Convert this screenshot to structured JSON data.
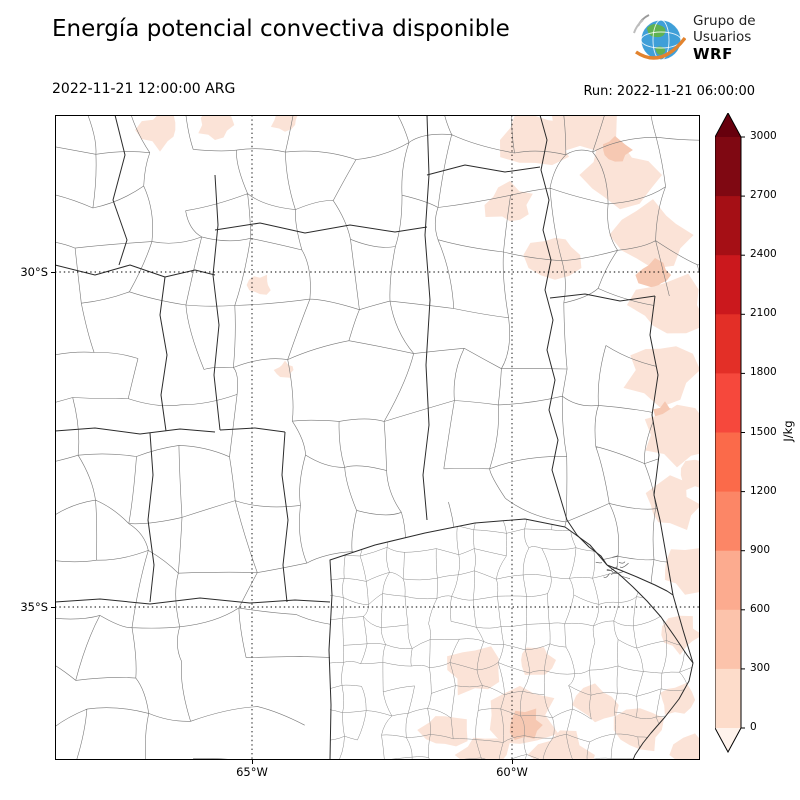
{
  "header": {
    "title": "Energía potencial convectiva disponible",
    "valid_time": "2022-11-21 12:00:00 ARG",
    "run_time": "Run: 2022-11-21 06:00:00"
  },
  "logo": {
    "org_line1": "Grupo de",
    "org_line2": "Usuarios",
    "org_line3": "WRF"
  },
  "axes": {
    "lat_ticks": [
      "30°S",
      "35°S"
    ],
    "lon_ticks": [
      "65°W",
      "60°W"
    ]
  },
  "colorbar": {
    "unit": "J/kg",
    "ticks": [
      "3000",
      "2700",
      "2400",
      "2100",
      "1800",
      "1500",
      "1200",
      "900",
      "600",
      "300",
      "0"
    ],
    "colors_top_to_bottom": [
      "#67000d",
      "#7f0812",
      "#a50f15",
      "#cb181d",
      "#e32f27",
      "#f6483c",
      "#fb6a4a",
      "#fc8666",
      "#fcab8f",
      "#fcc3ab",
      "#fddcca",
      "#fff3ec"
    ]
  },
  "chart_data": {
    "type": "heatmap",
    "title": "Energía potencial convectiva disponible",
    "variable": "CAPE (convective available potential energy)",
    "unit": "J/kg",
    "valid_time": "2022-11-21 12:00:00 ARG",
    "run": "2022-11-21 06:00:00",
    "levels": [
      0,
      300,
      600,
      900,
      1200,
      1500,
      1800,
      2100,
      2400,
      2700,
      3000
    ],
    "colormap": "Reds",
    "colorbar_extend": "both",
    "legend_position": "right",
    "lat_gridlines_deg_s": [
      30,
      35
    ],
    "lon_gridlines_deg_w": [
      65,
      60
    ],
    "basemap": "Argentina province and department boundaries",
    "shaded_regions": [
      {
        "area": "northeast of domain (Corrientes / Entre Ríos / east Santa Fe)",
        "approx_value_jkg": "0-600"
      },
      {
        "area": "eastern edge along Uruguay river",
        "approx_value_jkg": "0-600"
      },
      {
        "area": "central and south Buenos Aires patches",
        "approx_value_jkg": "0-300"
      },
      {
        "area": "small patches north-center of domain",
        "approx_value_jkg": "0-300"
      },
      {
        "area": "remainder of domain",
        "approx_value_jkg": "≈0 (white)"
      }
    ]
  }
}
